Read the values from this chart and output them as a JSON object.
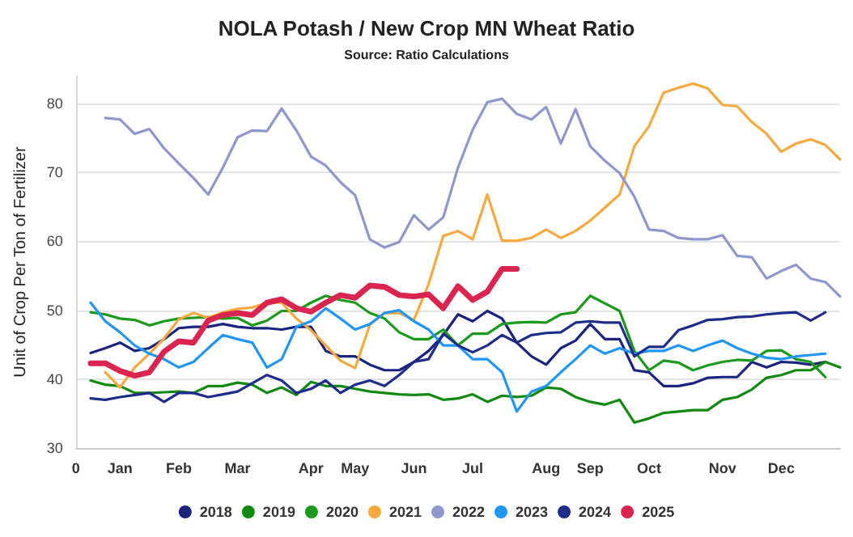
{
  "chart_data": {
    "type": "line",
    "title": "NOLA Potash / New Crop MN Wheat Ratio",
    "subtitle": "Source: Ratio Calculations",
    "ylabel": "Unit of Crop Per Ton of Fertilizer",
    "categories": [
      "0",
      null,
      null,
      "Jan",
      null,
      null,
      null,
      "Feb",
      null,
      null,
      null,
      "Mar",
      null,
      null,
      null,
      null,
      "Apr",
      null,
      null,
      "May",
      null,
      null,
      null,
      "Jun",
      null,
      null,
      null,
      "Jul",
      null,
      null,
      null,
      null,
      "Aug",
      null,
      null,
      "Sep",
      null,
      null,
      null,
      "Oct",
      null,
      null,
      null,
      null,
      "Nov",
      null,
      null,
      null,
      "Dec",
      null,
      null,
      null,
      null
    ],
    "ylim": [
      30,
      84
    ],
    "yticks": [
      30,
      40,
      50,
      60,
      70,
      80
    ],
    "grid": "y",
    "legend": "bottom",
    "marker": "none",
    "line_style": "solid",
    "series": [
      {
        "name": "2018",
        "color": "#1a237e",
        "values": [
          null,
          43.8,
          44.5,
          45.3,
          44.1,
          44.5,
          45.8,
          47.4,
          47.6,
          47.6,
          48,
          47.6,
          47.4,
          47.4,
          47.2,
          47.6,
          47.6,
          44.1,
          43.3,
          43.3,
          42.1,
          41.3,
          41.3,
          42.5,
          44.1,
          46.4,
          49.4,
          48.4,
          49.9,
          48.8,
          45.3,
          43.3,
          42.1,
          44.5,
          45.6,
          48,
          45.8,
          45.8,
          41.3,
          41,
          39,
          39,
          39.4,
          40.2,
          40.3,
          40.3,
          42.5,
          41.7,
          42.5,
          42.4,
          42.1,
          42.5,
          null
        ]
      },
      {
        "name": "2019",
        "color": "#128a12",
        "values": [
          null,
          39.8,
          39.2,
          39,
          38,
          38,
          38.1,
          38.2,
          38,
          39,
          39,
          39.5,
          39.2,
          38,
          38.8,
          37.7,
          39.6,
          39,
          39,
          38.6,
          38.2,
          38,
          37.8,
          37.7,
          37.8,
          37,
          37.2,
          37.8,
          36.7,
          37.6,
          37.4,
          37.6,
          38.8,
          38.6,
          37.4,
          36.7,
          36.3,
          37,
          33.7,
          34.3,
          35.1,
          35.3,
          35.5,
          35.5,
          37,
          37.4,
          38.5,
          40.2,
          40.6,
          41.3,
          41.3,
          42.5,
          41.7
        ]
      },
      {
        "name": "2020",
        "color": "#1c9a1c",
        "values": [
          null,
          49.7,
          49.4,
          48.8,
          48.6,
          47.8,
          48.4,
          48.8,
          48.9,
          49,
          48.8,
          48.9,
          47.8,
          48.5,
          49.9,
          49.9,
          51.1,
          52.1,
          51.5,
          51.1,
          49.6,
          48.8,
          46.8,
          45.8,
          45.8,
          47.2,
          44.9,
          46.6,
          46.6,
          48,
          48.2,
          48.3,
          48.2,
          49.4,
          49.7,
          52.1,
          51,
          49.9,
          44.1,
          41.3,
          42.7,
          42.4,
          41.3,
          42,
          42.5,
          42.8,
          42.7,
          44.1,
          44.2,
          42.9,
          42.5,
          40.3,
          null
        ]
      },
      {
        "name": "2021",
        "color": "#f5a93f",
        "values": [
          null,
          null,
          41,
          38.8,
          41.7,
          43.7,
          45.9,
          48.7,
          49.6,
          48.9,
          49.7,
          50.2,
          50.4,
          51.1,
          51.1,
          48.8,
          47.1,
          44.9,
          42.7,
          41.6,
          47.9,
          49.6,
          49.6,
          48.6,
          53.8,
          60.8,
          61.5,
          60.3,
          66.8,
          60.1,
          60.1,
          60.5,
          61.7,
          60.5,
          61.5,
          63.0,
          64.9,
          66.8,
          73.8,
          76.7,
          81.6,
          82.3,
          82.9,
          82.2,
          79.8,
          79.6,
          77.3,
          75.6,
          73,
          74.2,
          74.8,
          74,
          71.9
        ]
      },
      {
        "name": "2022",
        "color": "#8f97cc",
        "values": [
          null,
          null,
          77.9,
          77.7,
          75.6,
          76.3,
          73.5,
          71.3,
          69.2,
          66.8,
          70.7,
          75.1,
          76.1,
          76,
          79.3,
          76.1,
          72.3,
          71.0,
          68.6,
          66.7,
          60.3,
          59.1,
          59.9,
          63.8,
          61.7,
          63.5,
          70.7,
          76.2,
          80.2,
          80.7,
          78.5,
          77.7,
          79.5,
          74.2,
          79.2,
          73.8,
          71.7,
          69.9,
          66.5,
          61.7,
          61.5,
          60.5,
          60.3,
          60.3,
          60.9,
          57.9,
          57.7,
          54.6,
          55.7,
          56.6,
          54.6,
          54.1,
          52
        ]
      },
      {
        "name": "2023",
        "color": "#2196f3",
        "values": [
          null,
          51.1,
          48.4,
          46.8,
          44.9,
          43.7,
          42.9,
          41.7,
          42.5,
          44.5,
          46.4,
          45.8,
          45.3,
          41.7,
          42.9,
          47.6,
          48.4,
          50.3,
          48.8,
          47.2,
          48,
          49.6,
          50,
          48.4,
          47.2,
          44.9,
          44.9,
          42.9,
          42.9,
          41,
          35.3,
          38.2,
          39,
          41,
          42.9,
          44.9,
          43.7,
          44.5,
          43.7,
          44.1,
          44.1,
          44.9,
          44.1,
          44.9,
          45.6,
          44.5,
          43.7,
          43.1,
          42.9,
          43.3,
          43.5,
          43.7,
          null
        ]
      },
      {
        "name": "2024",
        "color": "#1f2d8a",
        "values": [
          null,
          37.2,
          37,
          37.4,
          37.7,
          38,
          36.7,
          38,
          38,
          37.4,
          37.8,
          38.2,
          39.4,
          40.6,
          39.8,
          38,
          38.6,
          39.8,
          38,
          39.2,
          39.8,
          39,
          40.6,
          42.5,
          42.9,
          46.6,
          44.9,
          43.9,
          44.9,
          46.4,
          45.3,
          46.4,
          46.7,
          46.8,
          48.2,
          48.4,
          48.2,
          48.2,
          43.3,
          44.7,
          44.7,
          47.1,
          47.8,
          48.6,
          48.7,
          49,
          49.1,
          49.4,
          49.6,
          49.7,
          48.5,
          49.7,
          null
        ]
      },
      {
        "name": "2025",
        "color": "#d9254f",
        "values": [
          null,
          42.3,
          42.3,
          41.2,
          40.5,
          41,
          44,
          45.5,
          45.3,
          48.5,
          49.3,
          49.6,
          49.3,
          51.1,
          51.6,
          50.3,
          49.8,
          51.1,
          52.2,
          51.8,
          53.6,
          53.4,
          52.2,
          52,
          52.3,
          50.3,
          53.5,
          51.5,
          52.7,
          56,
          56,
          null,
          null,
          null,
          null,
          null,
          null,
          null,
          null,
          null,
          null,
          null,
          null,
          null,
          null,
          null,
          null,
          null,
          null,
          null,
          null,
          null,
          null
        ]
      }
    ]
  }
}
